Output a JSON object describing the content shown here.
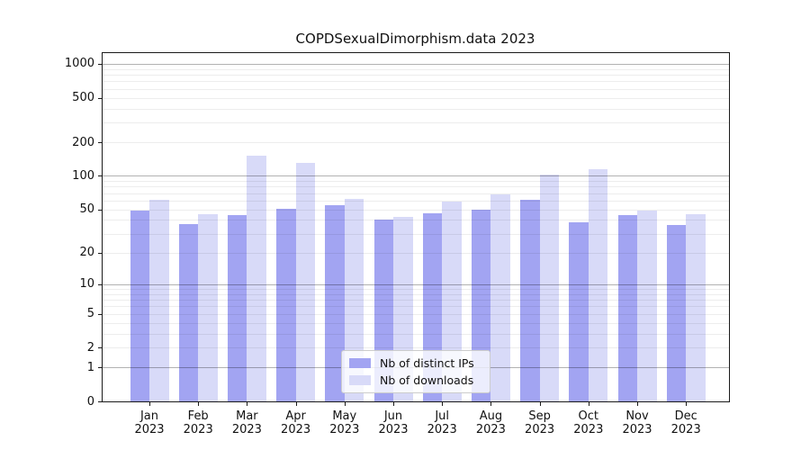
{
  "chart_data": {
    "type": "bar",
    "title": "COPDSexualDimorphism.data 2023",
    "categories": [
      "Jan",
      "Feb",
      "Mar",
      "Apr",
      "May",
      "Jun",
      "Jul",
      "Aug",
      "Sep",
      "Oct",
      "Nov",
      "Dec"
    ],
    "year_label": "2023",
    "series": [
      {
        "name": "Nb of distinct IPs",
        "color": "#a2a4f2",
        "values": [
          49,
          37,
          44,
          51,
          54,
          40,
          46,
          50,
          61,
          38,
          44,
          36
        ]
      },
      {
        "name": "Nb of downloads",
        "color": "#d8daf8",
        "values": [
          61,
          45,
          151,
          132,
          62,
          43,
          59,
          68,
          102,
          115,
          49,
          45
        ]
      }
    ],
    "yscale": "log1p",
    "yticks": [
      0,
      1,
      2,
      5,
      10,
      20,
      50,
      100,
      200,
      500,
      1000
    ],
    "grid": {
      "major_lines": [
        1,
        10,
        100,
        1000
      ],
      "minor_multiples": [
        2,
        3,
        4,
        5,
        6,
        7,
        8,
        9
      ],
      "minor_decades": [
        1,
        10,
        100
      ]
    },
    "legend_position": "lower-center-inside",
    "xlabel": "",
    "ylabel": ""
  }
}
